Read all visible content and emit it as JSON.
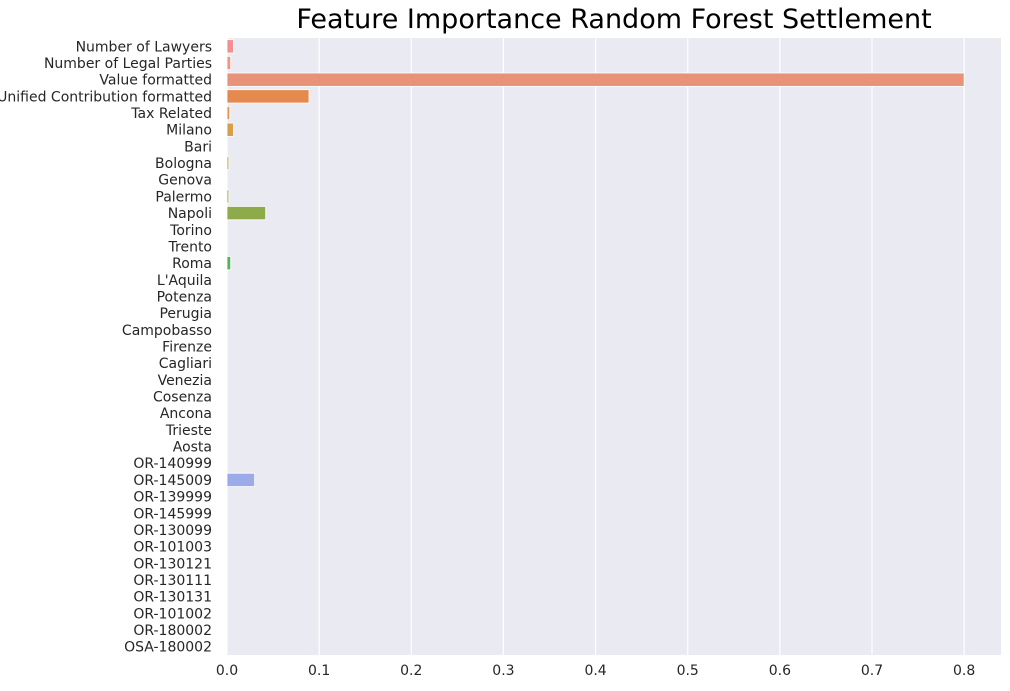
{
  "chart_data": {
    "type": "bar",
    "orientation": "horizontal",
    "title": "Feature Importance Random Forest Settlement",
    "xlabel": "",
    "ylabel": "",
    "xlim": [
      0,
      0.84
    ],
    "xticks": [
      "0.0",
      "0.1",
      "0.2",
      "0.3",
      "0.4",
      "0.5",
      "0.6",
      "0.7",
      "0.8"
    ],
    "grid": "vertical",
    "background_color": "#eaeaf2",
    "categories": [
      "Number of Lawyers",
      "Number of Legal Parties",
      "Value formatted",
      "Unified Contribution formatted",
      "Tax Related",
      "Milano",
      "Bari",
      "Bologna",
      "Genova",
      "Palermo",
      "Napoli",
      "Torino",
      "Trento",
      "Roma",
      "L'Aquila",
      "Potenza",
      "Perugia",
      "Campobasso",
      "Firenze",
      "Cagliari",
      "Venezia",
      "Cosenza",
      "Ancona",
      "Trieste",
      "Aosta",
      "OR-140999",
      "OR-145009",
      "OR-139999",
      "OR-145999",
      "OR-130099",
      "OR-101003",
      "OR-130121",
      "OR-130111",
      "OR-130131",
      "OR-101002",
      "OR-180002",
      "OSA-180002"
    ],
    "values": [
      0.007,
      0.004,
      0.8,
      0.089,
      0.003,
      0.007,
      0.0,
      0.002,
      0.0,
      0.002,
      0.042,
      0.0,
      0.0,
      0.004,
      0.0,
      0.0,
      0.0,
      0.0,
      0.0,
      0.0,
      0.0,
      0.0,
      0.0,
      0.0,
      0.0,
      0.0,
      0.03,
      0.0,
      0.0,
      0.0,
      0.0,
      0.0,
      0.0,
      0.0,
      0.0,
      0.0,
      0.0
    ],
    "colors": [
      "#f18f93",
      "#ef9683",
      "#e8927a",
      "#e48a4f",
      "#e09a55",
      "#d99e4c",
      "#cfa55c",
      "#c3a858",
      "#b6a95c",
      "#a8ac57",
      "#8eab4b",
      "#7fae4f",
      "#6bb05a",
      "#55b25a",
      "#52b375",
      "#50b386",
      "#4fb493",
      "#4eb59d",
      "#4db5a6",
      "#4cb5b0",
      "#4cb5ba",
      "#4db3c4",
      "#52b1cf",
      "#5aaedc",
      "#6aaae6",
      "#83a3ec",
      "#9caae9",
      "#a899e8",
      "#b48ee7",
      "#c085e6",
      "#cc7fe3",
      "#d67ad9",
      "#dd77cc",
      "#e378bf",
      "#e87bb2",
      "#ec80a4",
      "#ee8497"
    ]
  }
}
